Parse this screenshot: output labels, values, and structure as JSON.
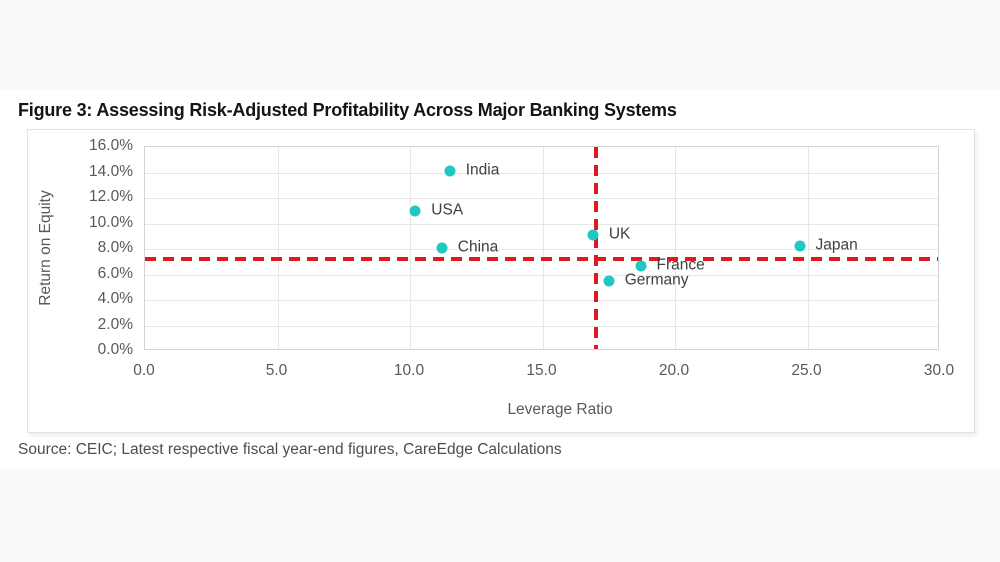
{
  "figure": {
    "title": "Figure 3: Assessing Risk-Adjusted Profitability Across Major Banking Systems"
  },
  "source": {
    "text": "Source: CEIC; Latest respective fiscal year-end figures, CareEdge Calculations"
  },
  "colors": {
    "point": "#1fc7c0",
    "reference_line": "#dd1a21",
    "grid": "#e8e8e8",
    "plot_border": "#d4d4d4",
    "tick_label": "#595959",
    "point_label": "#3f3f3f"
  },
  "chart_data": {
    "type": "scatter",
    "title": "Figure 3: Assessing Risk-Adjusted Profitability Across Major Banking Systems",
    "xlabel": "Leverage Ratio",
    "ylabel": "Return on Equity",
    "xlim": [
      0.0,
      30.0
    ],
    "ylim_percent": [
      0.0,
      16.0
    ],
    "x_ticks": [
      "0.0",
      "5.0",
      "10.0",
      "15.0",
      "20.0",
      "25.0",
      "30.0"
    ],
    "y_ticks": [
      "0.0%",
      "2.0%",
      "4.0%",
      "6.0%",
      "8.0%",
      "10.0%",
      "12.0%",
      "14.0%",
      "16.0%"
    ],
    "grid": true,
    "legend": false,
    "points": [
      {
        "label": "India",
        "x": 11.5,
        "y_percent": 14.1
      },
      {
        "label": "USA",
        "x": 10.2,
        "y_percent": 11.0
      },
      {
        "label": "China",
        "x": 11.2,
        "y_percent": 8.1
      },
      {
        "label": "UK",
        "x": 16.9,
        "y_percent": 9.1
      },
      {
        "label": "France",
        "x": 18.7,
        "y_percent": 6.7
      },
      {
        "label": "Germany",
        "x": 17.5,
        "y_percent": 5.5
      },
      {
        "label": "Japan",
        "x": 24.7,
        "y_percent": 8.2
      }
    ],
    "reference_lines": {
      "vertical_x": 17.0,
      "horizontal_y_percent": 7.2
    }
  }
}
